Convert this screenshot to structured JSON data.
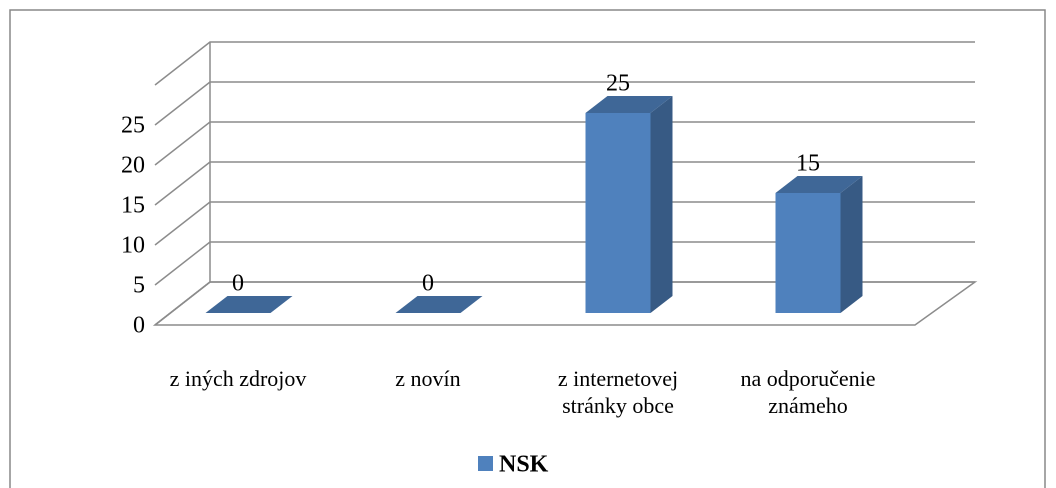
{
  "chart_data": {
    "type": "bar3d",
    "categories": [
      "z iných zdrojov",
      "z novín",
      "z internetovej stránky obce",
      "na odporučenie známeho"
    ],
    "series": [
      {
        "name": "NSK",
        "color": "#4f81bd",
        "values": [
          0,
          0,
          25,
          15
        ]
      }
    ],
    "ylim": [
      0,
      30
    ],
    "yticks": [
      0,
      5,
      10,
      15,
      20,
      25
    ],
    "grid": true,
    "legend": "bottom"
  }
}
